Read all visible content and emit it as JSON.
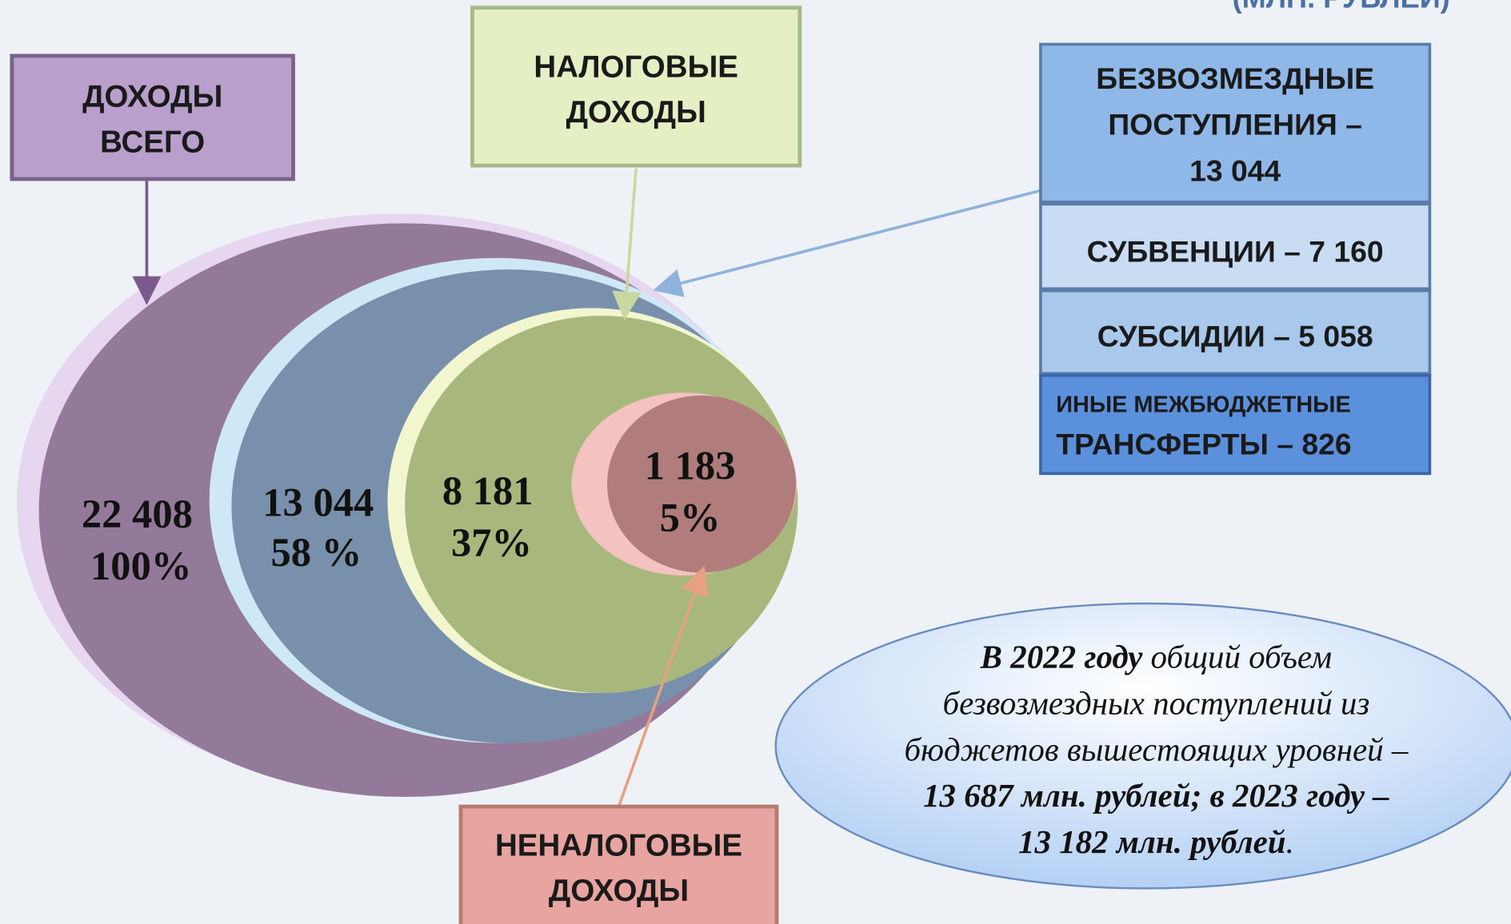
{
  "header": {
    "unit": "(МЛН. РУБЛЕЙ)"
  },
  "labels": {
    "total": [
      "ДОХОДЫ",
      "ВСЕГО"
    ],
    "tax": [
      "НАЛОГОВЫЕ",
      "ДОХОДЫ"
    ],
    "non_tax": [
      "НЕНАЛОГОВЫЕ",
      "ДОХОДЫ"
    ]
  },
  "circles": [
    {
      "value": "22 408",
      "percent": "100%"
    },
    {
      "value": "13 044",
      "percent": "58 %"
    },
    {
      "value": "8 181",
      "percent": "37%"
    },
    {
      "value": "1 183",
      "percent": "5%"
    }
  ],
  "transfers": {
    "title": [
      "БЕЗВОЗМЕЗДНЫЕ",
      "ПОСТУПЛЕНИЯ –",
      "13 044"
    ],
    "items": [
      "СУБВЕНЦИИ – 7 160",
      "СУБСИДИИ – 5 058"
    ],
    "other": [
      "ИНЫЕ МЕЖБЮДЖЕТНЫЕ",
      "ТРАНСФЕРТЫ – 826"
    ]
  },
  "note": [
    [
      {
        "text": "В 2022 году",
        "bold": true
      },
      {
        "text": " общий объем",
        "bold": false
      }
    ],
    [
      {
        "text": "безвозмездных поступлений из",
        "bold": false
      }
    ],
    [
      {
        "text": "бюджетов вышестоящих уровней –",
        "bold": false
      }
    ],
    [
      {
        "text": "13 687 млн. рублей; в 2023 году –",
        "bold": true
      }
    ],
    [
      {
        "text": "13 182 млн. рублей",
        "bold": true
      },
      {
        "text": ".",
        "bold": false
      }
    ]
  ]
}
